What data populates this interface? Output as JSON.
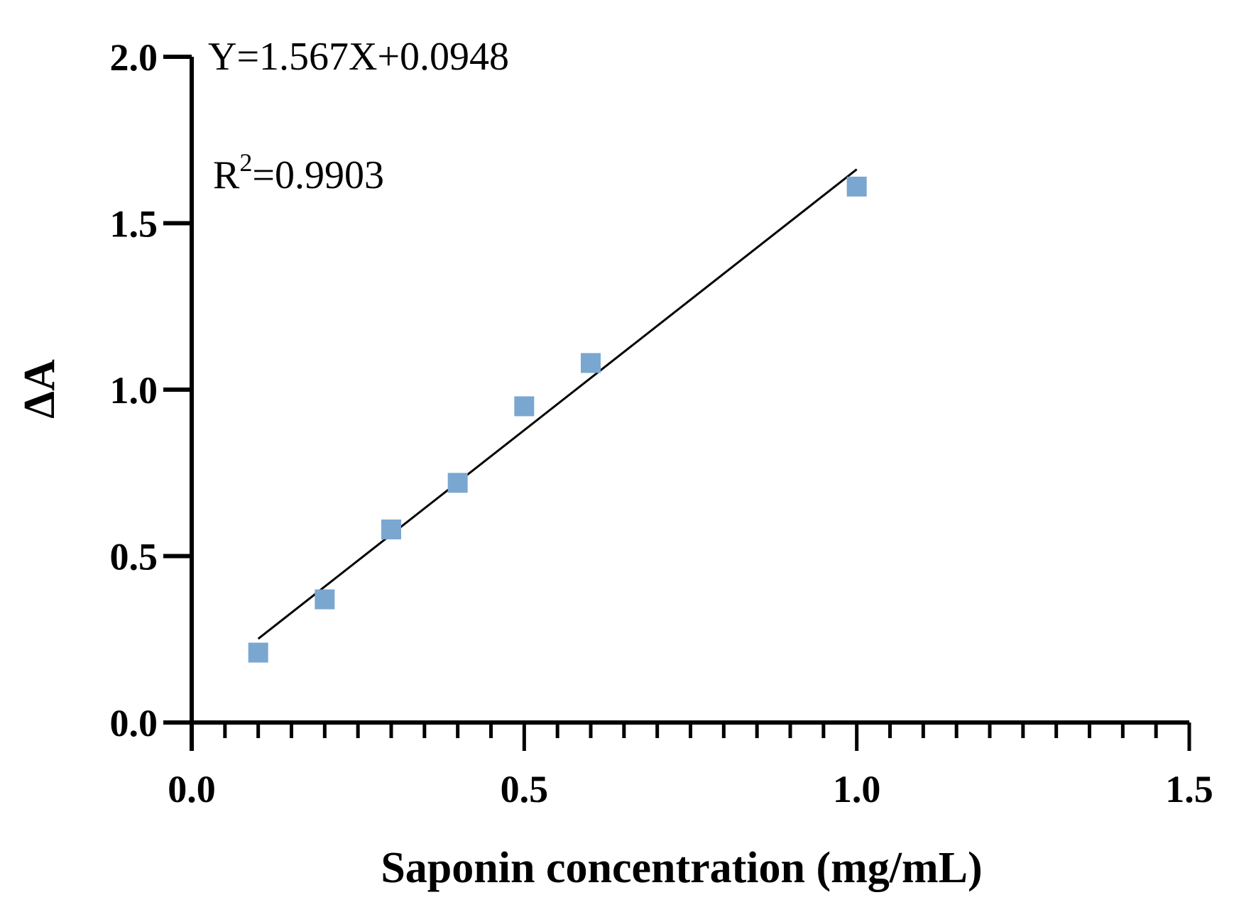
{
  "chart_data": {
    "type": "scatter",
    "xlabel": "Saponin concentration (mg/mL)",
    "ylabel": "ΔA",
    "xlim": [
      0,
      1.5
    ],
    "ylim": [
      0,
      2.0
    ],
    "x_ticks": [
      "0.0",
      "0.5",
      "1.0",
      "1.5"
    ],
    "y_ticks": [
      "0.0",
      "0.5",
      "1.0",
      "1.5",
      "2.0"
    ],
    "x_minor_step": 0.05,
    "grid": false,
    "marker": "square",
    "marker_color": "#7aa7d0",
    "points": [
      {
        "x": 0.1,
        "y": 0.21
      },
      {
        "x": 0.2,
        "y": 0.37
      },
      {
        "x": 0.3,
        "y": 0.58
      },
      {
        "x": 0.4,
        "y": 0.72
      },
      {
        "x": 0.5,
        "y": 0.95
      },
      {
        "x": 0.6,
        "y": 1.08
      },
      {
        "x": 1.0,
        "y": 1.61
      }
    ],
    "fit": {
      "slope": 1.567,
      "intercept": 0.0948,
      "x_range": [
        0.1,
        1.0
      ],
      "color": "#000000"
    },
    "annotations": {
      "equation": "Y=1.567X+0.0948",
      "r2_prefix": "R",
      "r2_sup": "2",
      "r2_value": "=0.9903"
    }
  }
}
